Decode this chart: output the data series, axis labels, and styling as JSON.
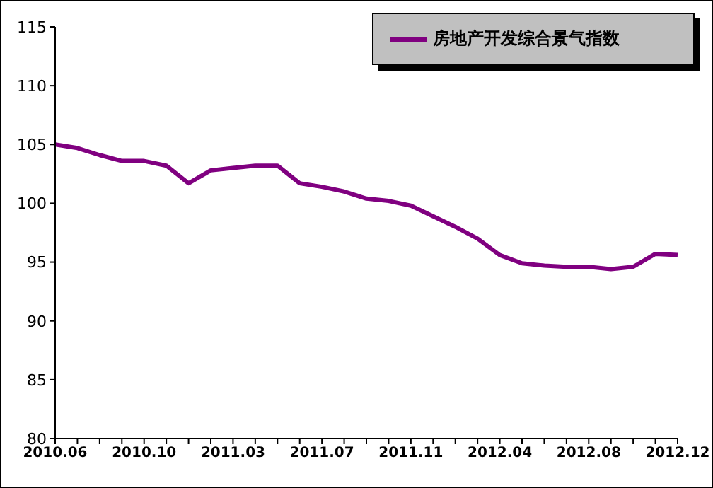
{
  "chart_data": {
    "type": "line",
    "categories": [
      "2010.06",
      null,
      null,
      null,
      "2010.10",
      null,
      null,
      null,
      "2011.03",
      null,
      null,
      null,
      "2011.07",
      null,
      null,
      null,
      "2011.11",
      null,
      null,
      null,
      "2012.04",
      null,
      null,
      null,
      "2012.08",
      null,
      null,
      null,
      "2012.12"
    ],
    "series": [
      {
        "name": "房地产开发综合景气指数",
        "color": "#800080",
        "values": [
          105.0,
          104.7,
          104.1,
          103.6,
          103.6,
          103.2,
          101.7,
          102.8,
          103.0,
          103.2,
          103.2,
          101.7,
          101.4,
          101.0,
          100.4,
          100.2,
          99.8,
          98.9,
          98.0,
          97.0,
          95.6,
          94.9,
          94.7,
          94.6,
          94.6,
          94.4,
          94.6,
          95.7,
          95.6
        ]
      }
    ],
    "ylim": [
      80,
      115
    ],
    "yticks": [
      80,
      85,
      90,
      95,
      100,
      105,
      110,
      115
    ],
    "grid": false,
    "legend": "top right",
    "marker": "none",
    "line_style": "solid"
  }
}
